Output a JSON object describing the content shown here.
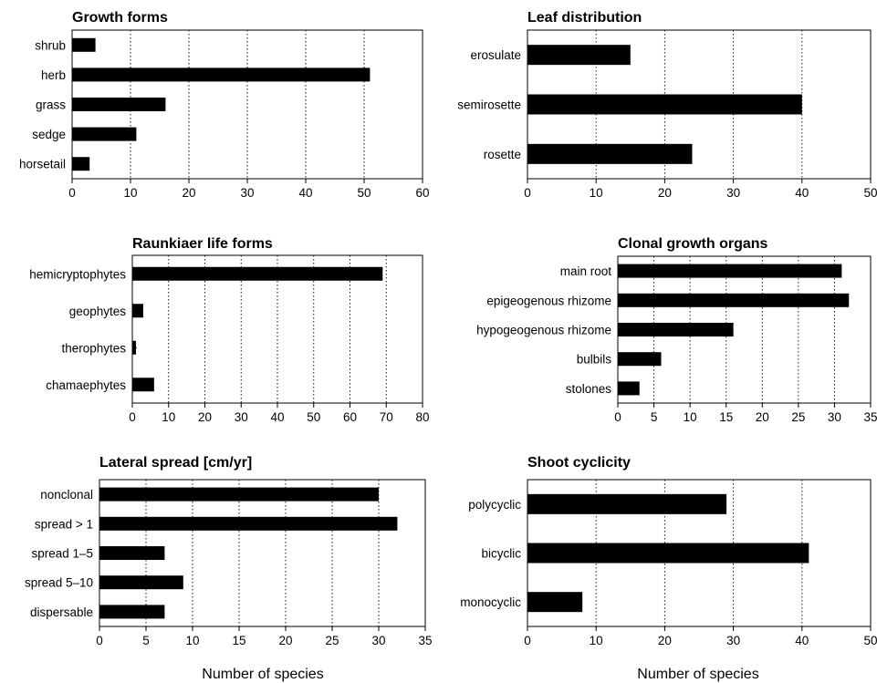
{
  "colors": {
    "bar": "#000000",
    "frame": "#000000",
    "grid": "#000000",
    "background": "#ffffff"
  },
  "x_axis_label": "Number of species",
  "chart_data": [
    {
      "type": "bar",
      "orientation": "horizontal",
      "title": "Growth forms",
      "categories": [
        "shrub",
        "herb",
        "grass",
        "sedge",
        "horsetail"
      ],
      "values": [
        4,
        51,
        16,
        11,
        3
      ],
      "xlabel": "",
      "xlim": [
        0,
        60
      ],
      "xticks": [
        0,
        10,
        20,
        30,
        40,
        50,
        60
      ],
      "grid": "vertical dotted"
    },
    {
      "type": "bar",
      "orientation": "horizontal",
      "title": "Leaf distribution",
      "categories": [
        "erosulate",
        "semirosette",
        "rosette"
      ],
      "values": [
        15,
        40,
        24
      ],
      "xlabel": "",
      "xlim": [
        0,
        50
      ],
      "xticks": [
        0,
        10,
        20,
        30,
        40,
        50
      ],
      "grid": "vertical dotted"
    },
    {
      "type": "bar",
      "orientation": "horizontal",
      "title": "Raunkiaer life forms",
      "categories": [
        "hemicryptophytes",
        "geophytes",
        "therophytes",
        "chamaephytes"
      ],
      "values": [
        69,
        3,
        1,
        6
      ],
      "xlabel": "",
      "xlim": [
        0,
        80
      ],
      "xticks": [
        0,
        10,
        20,
        30,
        40,
        50,
        60,
        70,
        80
      ],
      "grid": "vertical dotted"
    },
    {
      "type": "bar",
      "orientation": "horizontal",
      "title": "Clonal growth organs",
      "categories": [
        "main root",
        "epigeogenous rhizome",
        "hypogeogenous rhizome",
        "bulbils",
        "stolones"
      ],
      "values": [
        31,
        32,
        16,
        6,
        3
      ],
      "xlabel": "",
      "xlim": [
        0,
        35
      ],
      "xticks": [
        0,
        5,
        10,
        15,
        20,
        25,
        30,
        35
      ],
      "grid": "vertical dotted"
    },
    {
      "type": "bar",
      "orientation": "horizontal",
      "title": "Lateral spread [cm/yr]",
      "categories": [
        "nonclonal",
        "spread > 1",
        "spread 1–5",
        "spread 5–10",
        "dispersable"
      ],
      "values": [
        30,
        32,
        7,
        9,
        7
      ],
      "xlabel": "Number of species",
      "xlim": [
        0,
        35
      ],
      "xticks": [
        0,
        5,
        10,
        15,
        20,
        25,
        30,
        35
      ],
      "grid": "vertical dotted"
    },
    {
      "type": "bar",
      "orientation": "horizontal",
      "title": "Shoot cyclicity",
      "categories": [
        "polycyclic",
        "bicyclic",
        "monocyclic"
      ],
      "values": [
        29,
        41,
        8
      ],
      "xlabel": "Number of species",
      "xlim": [
        0,
        50
      ],
      "xticks": [
        0,
        10,
        20,
        30,
        40,
        50
      ],
      "grid": "vertical dotted"
    }
  ]
}
